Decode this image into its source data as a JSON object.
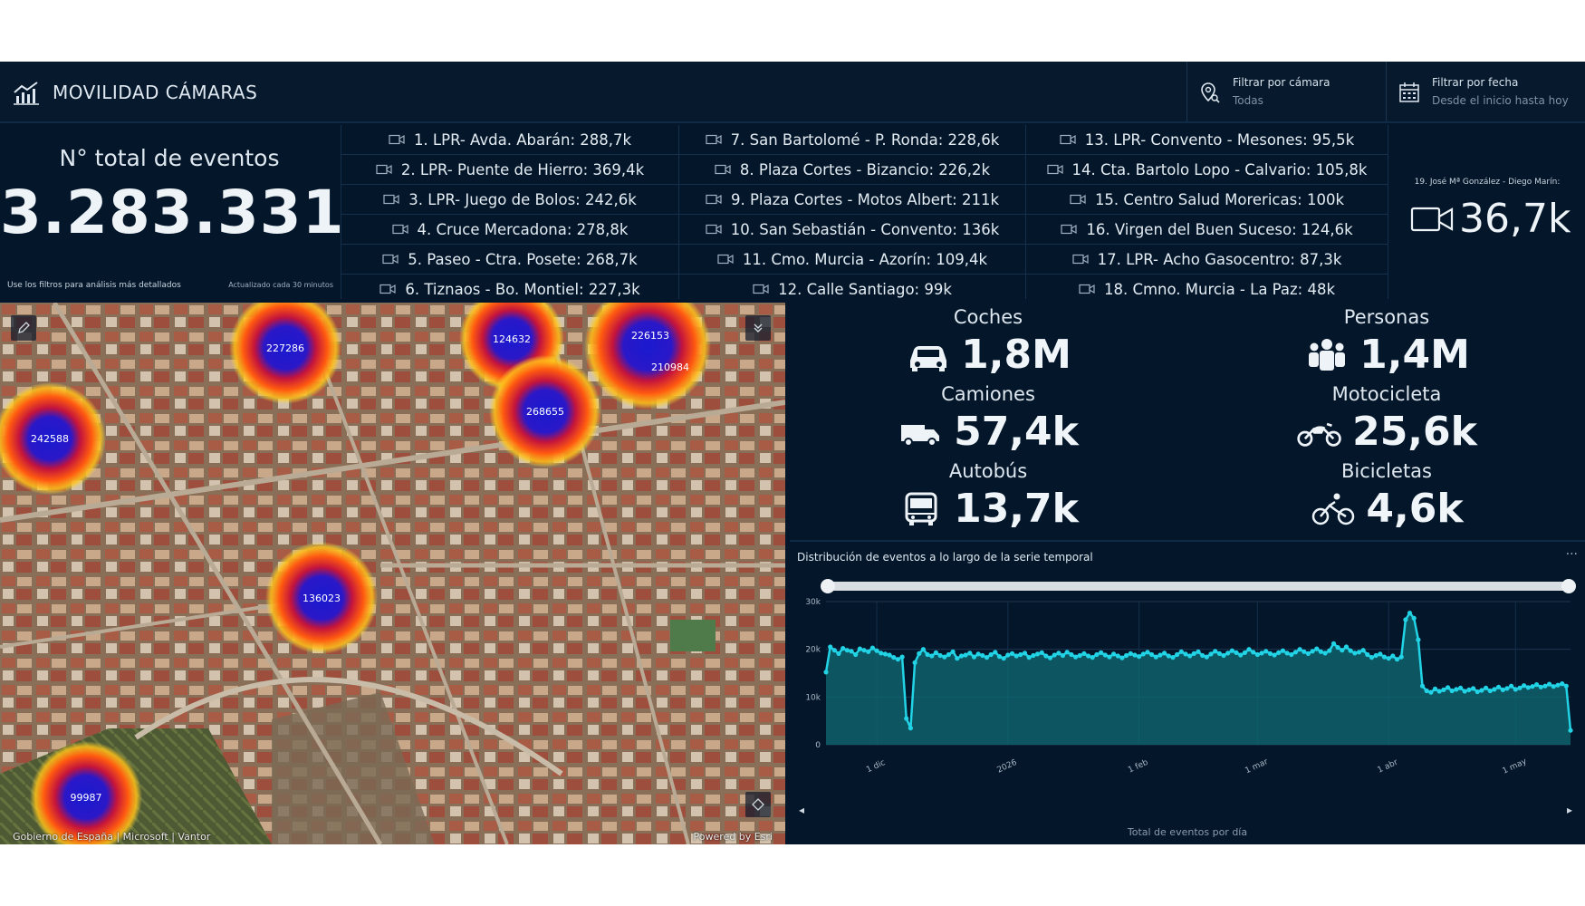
{
  "header": {
    "title": "MOVILIDAD CÁMARAS",
    "camera_filter": {
      "label": "Filtrar por cámara",
      "value": "Todas"
    },
    "date_filter": {
      "label": "Filtrar por fecha",
      "value": "Desde el inicio hasta hoy"
    }
  },
  "total": {
    "title": "N° total de eventos",
    "value": "3.283.331",
    "hint": "Use los filtros para análisis más detallados",
    "updated": "Actualizado cada 30 minutos"
  },
  "cameras": [
    [
      "1. LPR- Avda. Abarán: 288,7k",
      "2. LPR- Puente de Hierro: 369,4k",
      "3. LPR- Juego de Bolos: 242,6k",
      "4. Cruce Mercadona: 278,8k",
      "5. Paseo - Ctra. Posete: 268,7k",
      "6. Tiznaos - Bo. Montiel: 227,3k"
    ],
    [
      "7. San Bartolomé - P. Ronda: 228,6k",
      "8. Plaza Cortes - Bizancio: 226,2k",
      "9. Plaza Cortes - Motos Albert: 211k",
      "10. San Sebastián - Convento: 136k",
      "11. Cmo. Murcia - Azorín: 109,4k",
      "12. Calle Santiago: 99k"
    ],
    [
      "13. LPR- Convento - Mesones: 95,5k",
      "14. Cta. Bartolo Lopo - Calvario: 105,8k",
      "15. Centro Salud Morericas: 100k",
      "16. Virgen del Buen Suceso: 124,6k",
      "17. LPR- Acho Gasocentro: 87,3k",
      "18. Cmno. Murcia - La Paz: 48k"
    ]
  ],
  "camera19": {
    "label": "19. José Mª González - Diego Marín:",
    "value": "36,7k"
  },
  "map": {
    "attribution": "Gobierno de España | Microsoft | Vantor",
    "powered": "Powered by Esri",
    "clusters": [
      {
        "label": "227286"
      },
      {
        "label": "124632"
      },
      {
        "label": "226153"
      },
      {
        "label": "210984"
      },
      {
        "label": "268655"
      },
      {
        "label": "242588"
      },
      {
        "label": "136023"
      },
      {
        "label": "99987"
      }
    ]
  },
  "vehicles": [
    {
      "label": "Coches",
      "value": "1,8M",
      "icon": "car-icon"
    },
    {
      "label": "Personas",
      "value": "1,4M",
      "icon": "people-icon"
    },
    {
      "label": "Camiones",
      "value": "57,4k",
      "icon": "truck-icon"
    },
    {
      "label": "Motocicleta",
      "value": "25,6k",
      "icon": "motorcycle-icon"
    },
    {
      "label": "Autobús",
      "value": "13,7k",
      "icon": "bus-icon"
    },
    {
      "label": "Bicicletas",
      "value": "4,6k",
      "icon": "bicycle-icon"
    }
  ],
  "chart_panel": {
    "title": "Distribución de eventos a lo largo de la serie temporal",
    "more": "···",
    "footer": "Total de eventos por día"
  },
  "chart_data": {
    "type": "area",
    "title": "Distribución de eventos a lo largo de la serie temporal",
    "xlabel": "Total de eventos por día",
    "ylabel": "",
    "ylim": [
      0,
      30000
    ],
    "yticks": [
      "0",
      "10k",
      "20k",
      "30k"
    ],
    "xticks": [
      {
        "day": 12,
        "label": "1 dic"
      },
      {
        "day": 43,
        "label": "2026"
      },
      {
        "day": 74,
        "label": "1 feb"
      },
      {
        "day": 102,
        "label": "1 mar"
      },
      {
        "day": 133,
        "label": "1 abr"
      },
      {
        "day": 163,
        "label": "1 may"
      }
    ],
    "x_start": "19 nov",
    "grid": true,
    "color": "#22d3e6",
    "values": [
      15200,
      20500,
      19800,
      19100,
      20200,
      19800,
      19600,
      18900,
      20100,
      19800,
      19500,
      20300,
      19700,
      19200,
      19000,
      18800,
      18300,
      17900,
      18400,
      5500,
      3500,
      17200,
      19100,
      20000,
      18900,
      18600,
      19300,
      18700,
      18400,
      18900,
      19500,
      18100,
      18600,
      18800,
      19200,
      18400,
      19000,
      18700,
      18300,
      18900,
      19400,
      18500,
      18100,
      18800,
      19100,
      18600,
      18900,
      19200,
      18300,
      18700,
      19000,
      19300,
      18600,
      18200,
      18800,
      19200,
      18700,
      19400,
      18900,
      18400,
      18700,
      19100,
      18600,
      18300,
      18900,
      19300,
      18800,
      18400,
      19000,
      18600,
      18200,
      18700,
      19100,
      18800,
      18500,
      19000,
      19400,
      18900,
      18400,
      18800,
      19200,
      18600,
      18300,
      18900,
      19500,
      19000,
      18600,
      19100,
      19500,
      18700,
      18400,
      19000,
      19600,
      19100,
      18700,
      19200,
      19700,
      19300,
      18800,
      19300,
      20000,
      19400,
      18900,
      19200,
      19600,
      19100,
      18800,
      19300,
      19700,
      19200,
      18900,
      19400,
      20000,
      19500,
      19100,
      19600,
      20100,
      19500,
      19200,
      19700,
      21200,
      20400,
      19800,
      20500,
      19700,
      19200,
      19400,
      19800,
      18900,
      18300,
      18700,
      19000,
      18400,
      18100,
      18600,
      17900,
      18400,
      26200,
      27600,
      26500,
      22000,
      12300,
      11300,
      11000,
      11700,
      11200,
      11500,
      12000,
      11300,
      11600,
      11900,
      11200,
      11500,
      11800,
      11100,
      11400,
      11900,
      11300,
      11600,
      12100,
      11500,
      11800,
      12300,
      11600,
      11900,
      12400,
      12000,
      12200,
      12600,
      12100,
      12300,
      12700,
      12200,
      12500,
      12800,
      12300,
      3000
    ]
  }
}
